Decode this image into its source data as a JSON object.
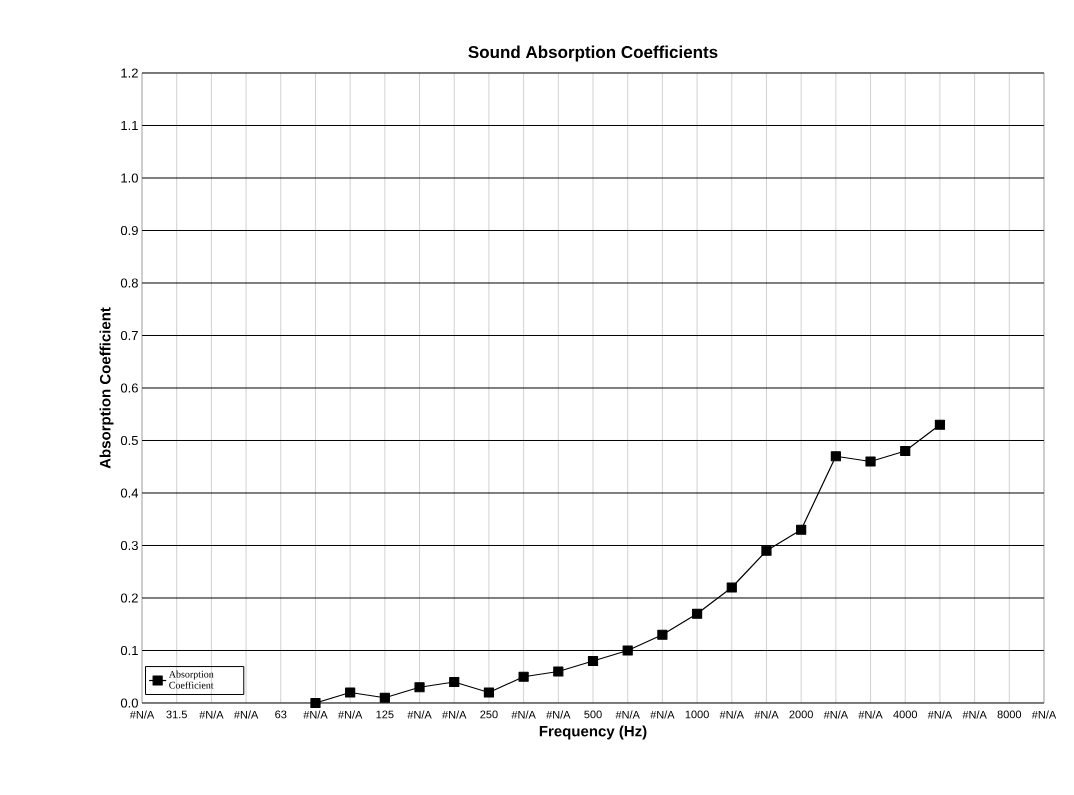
{
  "chart_data": {
    "type": "line",
    "title": "Sound Absorption Coefficients",
    "xlabel": "Frequency (Hz)",
    "ylabel": "Absorption Coefficient",
    "categories": [
      "#N/A",
      "31.5",
      "#N/A",
      "#N/A",
      "63",
      "#N/A",
      "#N/A",
      "125",
      "#N/A",
      "#N/A",
      "250",
      "#N/A",
      "#N/A",
      "500",
      "#N/A",
      "#N/A",
      "1000",
      "#N/A",
      "#N/A",
      "2000",
      "#N/A",
      "#N/A",
      "4000",
      "#N/A",
      "#N/A",
      "8000",
      "#N/A"
    ],
    "series": [
      {
        "name": "Absorption Coefficient",
        "color": "#000000",
        "values": [
          null,
          null,
          null,
          null,
          null,
          0.0,
          0.02,
          0.01,
          0.03,
          0.04,
          0.02,
          0.05,
          0.06,
          0.08,
          0.1,
          0.13,
          0.17,
          0.22,
          0.29,
          0.33,
          0.47,
          0.46,
          0.48,
          0.53,
          null,
          null,
          null
        ]
      }
    ],
    "ylim": [
      0,
      1.2
    ],
    "yticks": [
      {
        "value": 0,
        "label": "0.0"
      },
      {
        "value": 0.1,
        "label": "0.1"
      },
      {
        "value": 0.2,
        "label": "0.2"
      },
      {
        "value": 0.3,
        "label": "0.3"
      },
      {
        "value": 0.4,
        "label": "0.4"
      },
      {
        "value": 0.5,
        "label": "0.5"
      },
      {
        "value": 0.6,
        "label": "0.6"
      },
      {
        "value": 0.7,
        "label": "0.7"
      },
      {
        "value": 0.8,
        "label": "0.8"
      },
      {
        "value": 0.9,
        "label": "0.9"
      },
      {
        "value": 1.0,
        "label": "1.0"
      },
      {
        "value": 1.1,
        "label": "1.1"
      },
      {
        "value": 1.2,
        "label": "1.2"
      }
    ],
    "grid": true,
    "legend": "bottom left",
    "marker": "square",
    "line_style": "solid"
  }
}
